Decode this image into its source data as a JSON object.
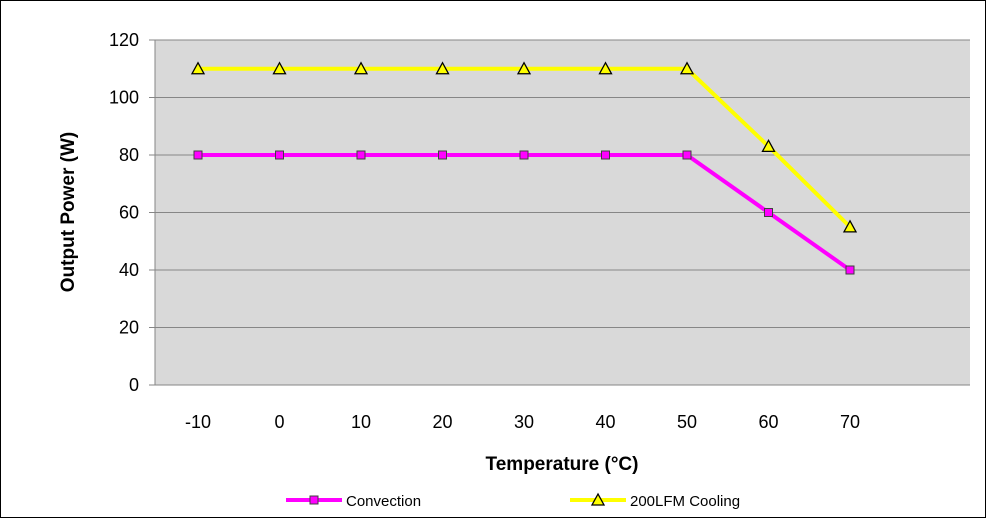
{
  "chart_data": {
    "type": "line",
    "xlabel": "Temperature (°C)",
    "ylabel": "Output Power (W)",
    "categories": [
      "-10",
      "0",
      "10",
      "20",
      "30",
      "40",
      "50",
      "60",
      "70"
    ],
    "ylim": [
      0,
      120
    ],
    "yticks": [
      0,
      20,
      40,
      60,
      80,
      100,
      120
    ],
    "grid": true,
    "legend_position": "bottom",
    "plot_background": "#d9d9d9",
    "series": [
      {
        "name": "Convection",
        "color": "#ff00ff",
        "marker": "square",
        "values": [
          80,
          80,
          80,
          80,
          80,
          80,
          80,
          60,
          40
        ]
      },
      {
        "name": "200LFM Cooling",
        "color": "#ffff00",
        "marker": "triangle",
        "values": [
          110,
          110,
          110,
          110,
          110,
          110,
          110,
          83,
          55
        ]
      }
    ]
  }
}
